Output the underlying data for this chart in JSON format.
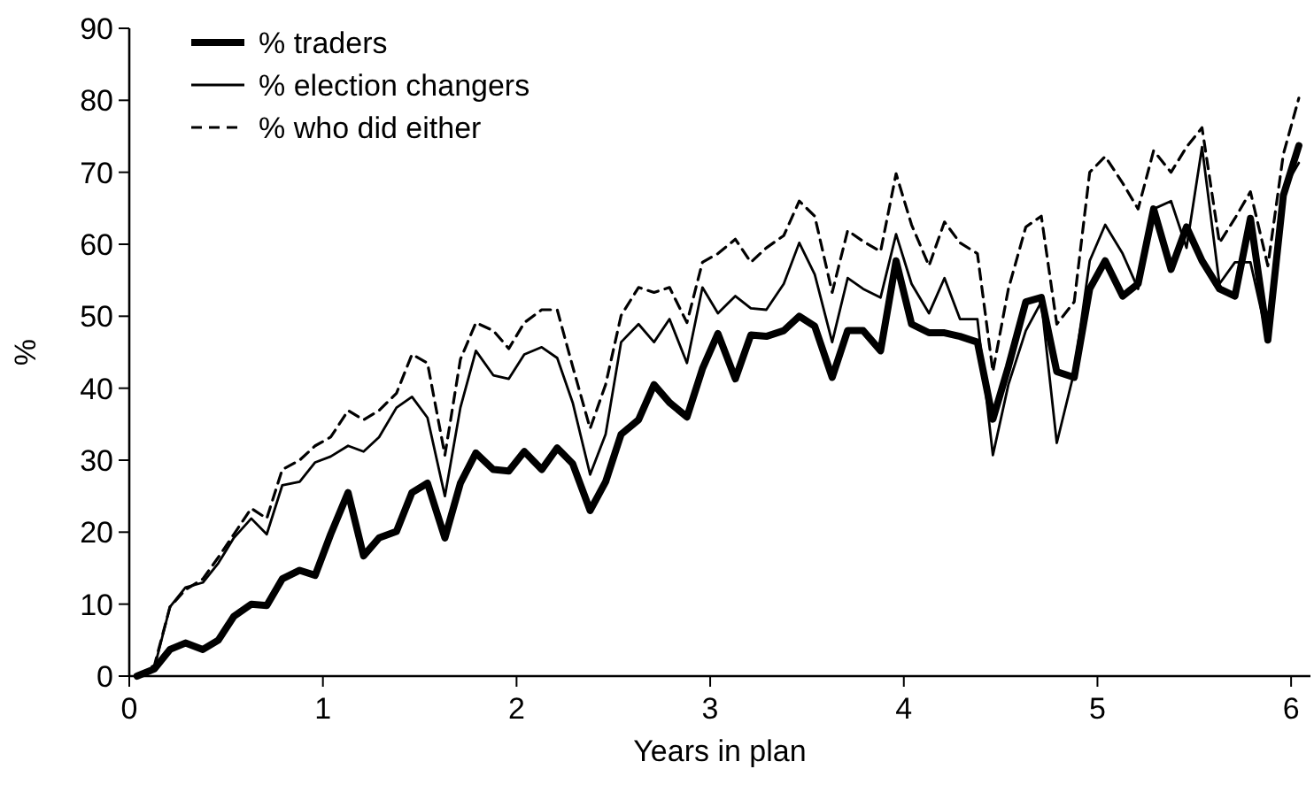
{
  "chart_data": {
    "type": "line",
    "xlabel": "Years in plan",
    "ylabel": "%",
    "xlim": [
      0,
      6.1
    ],
    "xticks": [
      0,
      1,
      2,
      3,
      4,
      5,
      6
    ],
    "ylim": [
      0,
      90
    ],
    "yticks": [
      0,
      10,
      20,
      30,
      40,
      50,
      60,
      70,
      80,
      90
    ],
    "legend": "top left",
    "marker": "none",
    "x": [
      0.04,
      0.13,
      0.21,
      0.29,
      0.38,
      0.46,
      0.54,
      0.63,
      0.71,
      0.79,
      0.88,
      0.96,
      1.04,
      1.13,
      1.21,
      1.29,
      1.38,
      1.46,
      1.54,
      1.63,
      1.71,
      1.79,
      1.88,
      1.96,
      2.04,
      2.13,
      2.21,
      2.29,
      2.38,
      2.46,
      2.54,
      2.63,
      2.71,
      2.79,
      2.88,
      2.96,
      3.04,
      3.13,
      3.21,
      3.29,
      3.38,
      3.46,
      3.54,
      3.63,
      3.71,
      3.79,
      3.88,
      3.96,
      4.04,
      4.13,
      4.21,
      4.29,
      4.38,
      4.46,
      4.54,
      4.63,
      4.71,
      4.79,
      4.88,
      4.96,
      5.04,
      5.13,
      5.21,
      5.29,
      5.38,
      5.46,
      5.54,
      5.63,
      5.71,
      5.79,
      5.88,
      5.96,
      6.04
    ],
    "series": [
      {
        "name": "% traders",
        "color": "#000000",
        "line_style": "solid",
        "values": [
          0,
          1,
          3.7,
          4.6,
          3.7,
          5,
          8.3,
          10,
          9.8,
          13.5,
          14.7,
          14,
          19.7,
          25.5,
          16.7,
          19.2,
          20.1,
          25.5,
          26.8,
          19.2,
          26.8,
          31,
          28.7,
          28.5,
          31.2,
          28.7,
          31.7,
          29.5,
          23,
          27,
          33.6,
          35.6,
          40.5,
          38,
          36,
          42.7,
          47.6,
          41.3,
          47.4,
          47.2,
          48,
          50,
          48.6,
          41.5,
          48,
          48,
          45.2,
          57.7,
          48.9,
          47.7,
          47.7,
          47.2,
          46.4,
          35.7,
          43,
          52,
          52.6,
          42.3,
          41.5,
          53.8,
          57.7,
          52.8,
          54.5,
          64.9,
          56.5,
          62.4,
          57.7,
          53.8,
          52.8,
          63.6,
          46.7,
          66.8,
          73.7
        ]
      },
      {
        "name": "% election changers",
        "color": "#000000",
        "line_style": "solid",
        "values": [
          0,
          1.2,
          9.6,
          12.3,
          13,
          15.7,
          19.2,
          21.9,
          19.7,
          26.5,
          27,
          29.7,
          30.5,
          32,
          31.2,
          33.2,
          37.3,
          38.8,
          35.9,
          25,
          37.3,
          45.2,
          41.8,
          41.3,
          44.7,
          45.7,
          44.2,
          38,
          28,
          33.6,
          46.4,
          48.9,
          46.4,
          49.6,
          43.5,
          54,
          50.4,
          52.8,
          51.1,
          50.9,
          54.5,
          60.2,
          55.8,
          46.4,
          55.3,
          53.8,
          52.6,
          61.4,
          54.5,
          50.4,
          55.3,
          49.6,
          49.6,
          30.7,
          40.5,
          48,
          52,
          32.4,
          42.3,
          57.7,
          62.7,
          58.7,
          53.8,
          64.9,
          66,
          59.5,
          73.5,
          54.5,
          57.5,
          57.5,
          46.7,
          67.6,
          71.3
        ]
      },
      {
        "name": "% who did either",
        "color": "#000000",
        "line_style": "dashed",
        "values": [
          0,
          1.5,
          9.6,
          12,
          13.5,
          16.5,
          19.7,
          23.3,
          21.9,
          28.7,
          30,
          32,
          33.2,
          36.9,
          35.6,
          36.9,
          39.3,
          44.7,
          43.5,
          30.7,
          44,
          49.1,
          48,
          45.5,
          49.1,
          50.9,
          50.9,
          43,
          34.4,
          40.5,
          50.1,
          54,
          53.3,
          54,
          49.1,
          57.5,
          58.7,
          60.7,
          57.5,
          59.5,
          61.2,
          66,
          63.9,
          53.3,
          61.9,
          60.4,
          59,
          69.8,
          62.7,
          57,
          63.1,
          60.2,
          58.7,
          42.3,
          53.8,
          62.4,
          63.9,
          48.9,
          52,
          70,
          72.2,
          68.5,
          64.9,
          73,
          70,
          73.5,
          76.2,
          60.2,
          63.6,
          67.3,
          57,
          72.5,
          80.3
        ]
      }
    ]
  }
}
